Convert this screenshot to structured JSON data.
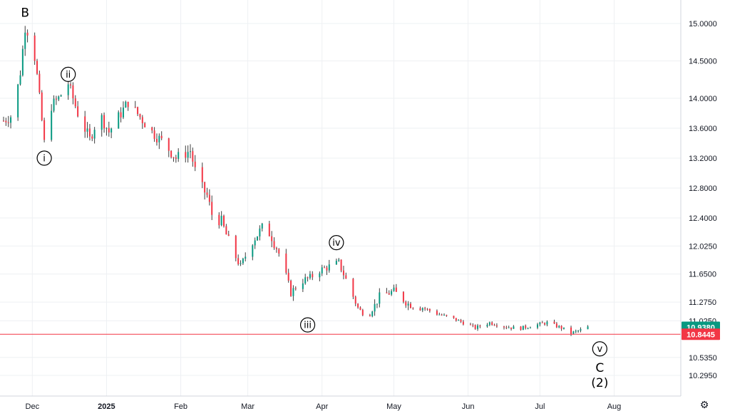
{
  "chart_data": {
    "type": "candlestick",
    "price_axis": {
      "ticks": [
        "15.0000",
        "14.5000",
        "14.0000",
        "13.6000",
        "13.2000",
        "12.8000",
        "12.4000",
        "12.0250",
        "11.6500",
        "11.2750",
        "11.0250",
        "10.5350",
        "10.2950"
      ],
      "range": [
        10.1,
        15.15
      ]
    },
    "time_axis": {
      "ticks": [
        "Dec",
        "2025",
        "Feb",
        "Mar",
        "Apr",
        "May",
        "Jun",
        "Jul",
        "Aug"
      ],
      "range": [
        "2024-11-19",
        "2025-08-08"
      ]
    },
    "price_tags": [
      {
        "label": "10.9380",
        "value": 10.938,
        "color": "#089981"
      },
      {
        "label": "10.8445",
        "value": 10.8445,
        "color": "#f23645"
      }
    ],
    "horizontal_line": {
      "value": 10.8445,
      "color": "#f23645"
    },
    "wave_labels": [
      {
        "text": "B",
        "date": "2024-11-28",
        "price": 15.15,
        "circled": false,
        "size": "big"
      },
      {
        "text": "i",
        "date": "2024-12-06",
        "price": 13.2,
        "circled": true
      },
      {
        "text": "ii",
        "date": "2024-12-16",
        "price": 14.32,
        "circled": true
      },
      {
        "text": "iii",
        "date": "2025-03-26",
        "price": 10.97,
        "circled": true
      },
      {
        "text": "iv",
        "date": "2025-04-07",
        "price": 12.07,
        "circled": true
      },
      {
        "text": "v",
        "date": "2025-07-26",
        "price": 10.65,
        "circled": true
      },
      {
        "text": "C",
        "date": "2025-07-26",
        "price": 10.4,
        "circled": false,
        "size": "big"
      },
      {
        "text": "(2)",
        "date": "2025-07-26",
        "price": 10.2,
        "circled": false,
        "size": "big"
      }
    ],
    "price_path": [
      [
        "2024-11-19",
        13.7
      ],
      [
        "2024-11-23",
        13.78
      ],
      [
        "2024-11-26",
        14.35
      ],
      [
        "2024-11-28",
        14.95
      ],
      [
        "2024-12-01",
        14.8
      ],
      [
        "2024-12-03",
        14.3
      ],
      [
        "2024-12-06",
        13.4
      ],
      [
        "2024-12-09",
        13.9
      ],
      [
        "2024-12-12",
        14.0
      ],
      [
        "2024-12-16",
        14.2
      ],
      [
        "2024-12-20",
        13.8
      ],
      [
        "2024-12-25",
        13.45
      ],
      [
        "2024-12-29",
        13.8
      ],
      [
        "2025-01-02",
        13.55
      ],
      [
        "2025-01-06",
        13.75
      ],
      [
        "2025-01-10",
        13.95
      ],
      [
        "2025-01-15",
        13.75
      ],
      [
        "2025-01-20",
        13.55
      ],
      [
        "2025-01-25",
        13.4
      ],
      [
        "2025-01-30",
        13.2
      ],
      [
        "2025-02-05",
        13.3
      ],
      [
        "2025-02-08",
        12.9
      ],
      [
        "2025-02-12",
        12.7
      ],
      [
        "2025-02-14",
        12.45
      ],
      [
        "2025-02-18",
        12.35
      ],
      [
        "2025-02-22",
        12.0
      ],
      [
        "2025-02-26",
        11.75
      ],
      [
        "2025-03-03",
        12.1
      ],
      [
        "2025-03-08",
        12.3
      ],
      [
        "2025-03-11",
        12.15
      ],
      [
        "2025-03-15",
        11.85
      ],
      [
        "2025-03-19",
        11.4
      ],
      [
        "2025-03-23",
        11.55
      ],
      [
        "2025-03-27",
        11.6
      ],
      [
        "2025-03-31",
        11.7
      ],
      [
        "2025-04-04",
        11.75
      ],
      [
        "2025-04-08",
        11.8
      ],
      [
        "2025-04-12",
        11.5
      ],
      [
        "2025-04-16",
        11.2
      ],
      [
        "2025-04-20",
        11.05
      ],
      [
        "2025-04-25",
        11.35
      ],
      [
        "2025-05-01",
        11.42
      ],
      [
        "2025-05-07",
        11.25
      ],
      [
        "2025-05-13",
        11.2
      ],
      [
        "2025-05-19",
        11.12
      ],
      [
        "2025-05-26",
        11.05
      ],
      [
        "2025-05-30",
        11.0
      ],
      [
        "2025-06-04",
        10.93
      ],
      [
        "2025-06-10",
        11.0
      ],
      [
        "2025-06-16",
        10.95
      ],
      [
        "2025-06-22",
        10.92
      ],
      [
        "2025-06-28",
        10.96
      ],
      [
        "2025-07-04",
        11.0
      ],
      [
        "2025-07-10",
        10.93
      ],
      [
        "2025-07-14",
        10.86
      ],
      [
        "2025-07-18",
        10.9
      ],
      [
        "2025-07-21",
        10.94
      ]
    ]
  },
  "colors": {
    "up": "#089981",
    "down": "#f23645",
    "wick": "#3c3c3c",
    "grid": "#eef0f3"
  },
  "icons": {
    "settings": "gear-icon"
  }
}
